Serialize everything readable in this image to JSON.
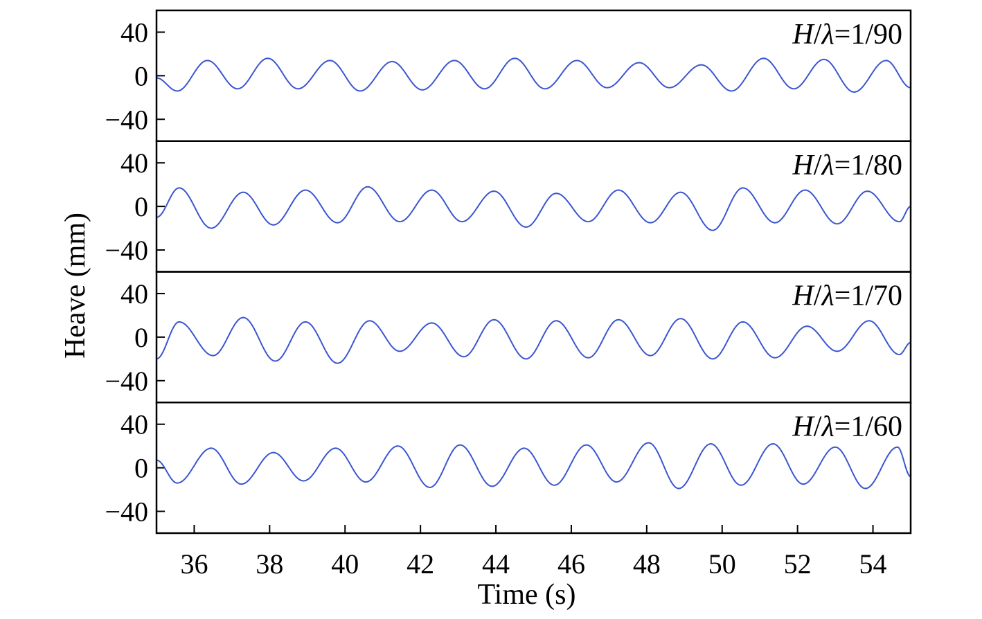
{
  "chart_data": {
    "type": "line",
    "xlabel": "Time (s)",
    "ylabel": "Heave (mm)",
    "xlim": [
      35,
      55
    ],
    "ylim": [
      -60,
      60
    ],
    "x_ticks": [
      36,
      38,
      40,
      42,
      44,
      46,
      48,
      50,
      52,
      54
    ],
    "y_ticks": [
      40,
      0,
      -40
    ],
    "y_tick_labels": [
      "40",
      "0",
      "−40"
    ],
    "grid": false,
    "line_color": "#3a55d0",
    "series": [
      {
        "label_prefix": "H/",
        "label_symbol": "λ",
        "label_suffix": "=1/90",
        "period_s": 1.63,
        "crest_times": [
          36.35,
          37.95,
          39.6,
          41.25,
          42.9,
          44.5,
          46.15,
          47.8,
          49.45,
          51.1,
          52.7,
          54.35
        ],
        "crest_values": [
          14,
          16,
          14,
          13,
          14,
          16,
          14,
          12,
          10,
          16,
          15,
          14
        ],
        "trough_times": [
          35.55,
          37.15,
          38.75,
          40.4,
          42.05,
          43.7,
          45.3,
          46.95,
          48.6,
          50.25,
          51.9,
          53.5
        ],
        "trough_values": [
          -14,
          -12,
          -12,
          -14,
          -13,
          -12,
          -12,
          -11,
          -11,
          -14,
          -12,
          -15
        ],
        "start": [
          35.0,
          -2
        ],
        "end": [
          55.0,
          -11
        ]
      },
      {
        "label_prefix": "H/",
        "label_symbol": "λ",
        "label_suffix": "=1/80",
        "period_s": 1.67,
        "crest_times": [
          35.6,
          37.3,
          38.95,
          40.6,
          42.3,
          43.95,
          45.6,
          47.25,
          48.9,
          50.55,
          52.2,
          53.85
        ],
        "crest_values": [
          17,
          13,
          15,
          18,
          15,
          14,
          12,
          15,
          13,
          17,
          15,
          14
        ],
        "trough_times": [
          36.45,
          38.1,
          39.8,
          41.45,
          43.1,
          44.8,
          46.45,
          48.1,
          49.75,
          51.4,
          53.05,
          54.7
        ],
        "trough_values": [
          -20,
          -17,
          -15,
          -14,
          -14,
          -19,
          -14,
          -15,
          -22,
          -15,
          -16,
          -14
        ],
        "start": [
          35.0,
          -10
        ],
        "end": [
          55.0,
          0
        ]
      },
      {
        "label_prefix": "H/",
        "label_symbol": "λ",
        "label_suffix": "=1/70",
        "period_s": 1.67,
        "crest_times": [
          35.6,
          37.3,
          38.95,
          40.65,
          42.3,
          43.95,
          45.6,
          47.25,
          48.9,
          50.55,
          52.25,
          53.9
        ],
        "crest_values": [
          14,
          18,
          14,
          15,
          13,
          16,
          15,
          16,
          17,
          14,
          10,
          15
        ],
        "trough_times": [
          36.5,
          38.15,
          39.8,
          41.45,
          43.15,
          44.8,
          46.45,
          48.1,
          49.75,
          51.4,
          53.05,
          54.7
        ],
        "trough_values": [
          -17,
          -22,
          -24,
          -13,
          -18,
          -20,
          -19,
          -17,
          -20,
          -19,
          -13,
          -16
        ],
        "start": [
          35.0,
          -20
        ],
        "end": [
          55.0,
          -5
        ]
      },
      {
        "label_prefix": "H/",
        "label_symbol": "λ",
        "label_suffix": "=1/60",
        "period_s": 1.67,
        "crest_times": [
          36.45,
          38.1,
          39.75,
          41.4,
          43.05,
          44.75,
          46.4,
          48.05,
          49.7,
          51.35,
          53.0,
          54.65
        ],
        "crest_values": [
          18,
          14,
          18,
          20,
          21,
          18,
          21,
          23,
          22,
          22,
          19,
          19
        ],
        "trough_times": [
          35.55,
          37.25,
          38.9,
          40.55,
          42.25,
          43.9,
          45.55,
          47.2,
          48.85,
          50.5,
          52.15,
          53.8
        ],
        "trough_values": [
          -14,
          -15,
          -12,
          -13,
          -18,
          -17,
          -16,
          -13,
          -19,
          -16,
          -15,
          -19
        ],
        "start": [
          35.0,
          7
        ],
        "end": [
          55.0,
          -8
        ]
      }
    ]
  }
}
